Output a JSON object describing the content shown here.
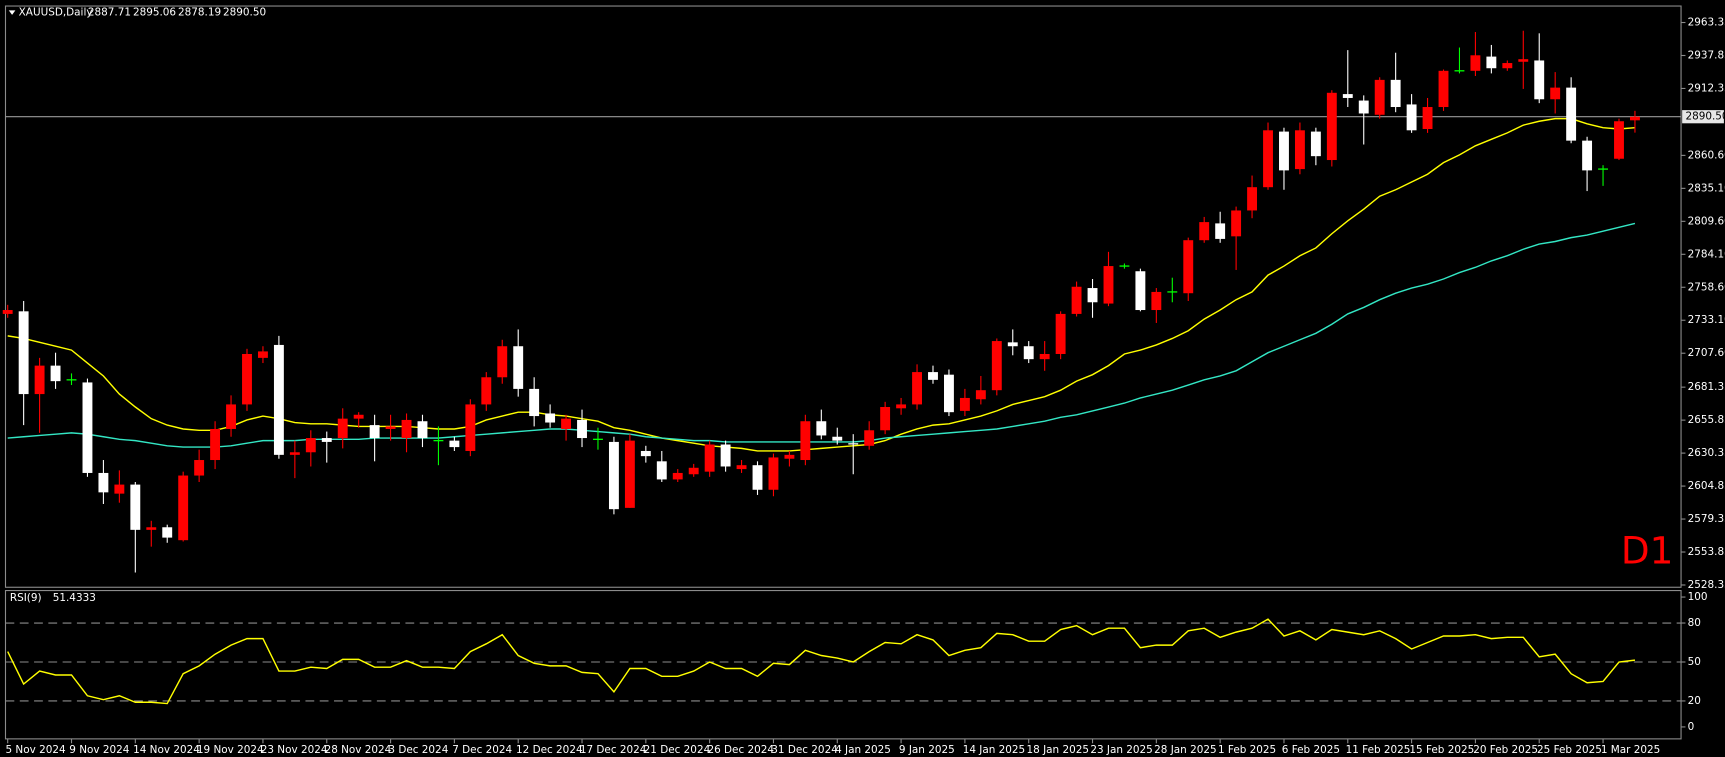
{
  "chart_data": [
    {
      "type": "candlestick",
      "title": "XAUUSD,Daily",
      "last_bar_labels": [
        "2887.71",
        "2895.06",
        "2878.19",
        "2890.50"
      ],
      "badge": "D1",
      "categories": [
        "5 Nov 2024",
        null,
        null,
        null,
        "9 Nov 2024",
        null,
        null,
        null,
        "14 Nov 2024",
        null,
        null,
        null,
        "19 Nov 2024",
        null,
        null,
        null,
        "23 Nov 2024",
        null,
        null,
        null,
        "28 Nov 2024",
        null,
        null,
        null,
        "3 Dec 2024",
        null,
        null,
        null,
        "7 Dec 2024",
        null,
        null,
        null,
        "12 Dec 2024",
        null,
        null,
        null,
        "17 Dec 2024",
        null,
        null,
        null,
        "21 Dec 2024",
        null,
        null,
        null,
        "26 Dec 2024",
        null,
        null,
        null,
        "31 Dec 2024",
        null,
        null,
        null,
        "4 Jan 2025",
        null,
        null,
        null,
        "9 Jan 2025",
        null,
        null,
        null,
        "14 Jan 2025",
        null,
        null,
        null,
        "18 Jan 2025",
        null,
        null,
        null,
        "23 Jan 2025",
        null,
        null,
        null,
        "28 Jan 2025",
        null,
        null,
        null,
        "1 Feb 2025",
        null,
        null,
        null,
        "6 Feb 2025",
        null,
        null,
        null,
        "11 Feb 2025",
        null,
        null,
        null,
        "15 Feb 2025",
        null,
        null,
        null,
        "20 Feb 2025",
        null,
        null,
        null,
        "25 Feb 2025",
        null,
        null,
        null,
        "1 Mar 2025",
        null,
        null
      ],
      "open": [
        2738,
        2740,
        2676,
        2698,
        2687,
        2685,
        2615,
        2599,
        2606,
        2571,
        2573,
        2563,
        2613,
        2625,
        2649,
        2668,
        2704,
        2714,
        2629,
        2631,
        2642,
        2642,
        2657,
        2652,
        2649,
        2642,
        2655,
        2640,
        2640,
        2632,
        2668,
        2689,
        2713,
        2680,
        2661,
        2649,
        2656,
        2641,
        2639,
        2588,
        2632,
        2624,
        2610,
        2614,
        2616,
        2637,
        2618,
        2621,
        2602,
        2626,
        2625,
        2655,
        2643,
        2638,
        2636,
        2648,
        2665,
        2668,
        2693,
        2691,
        2663,
        2672,
        2679,
        2716,
        2713,
        2703,
        2707,
        2738,
        2758,
        2746,
        2775,
        2771,
        2741,
        2755,
        2754,
        2795,
        2808,
        2798,
        2818,
        2836,
        2879,
        2850,
        2879,
        2857,
        2908,
        2903,
        2892,
        2919,
        2900,
        2881,
        2898,
        2926,
        2926,
        2937,
        2928,
        2933,
        2934,
        2904,
        2913,
        2872,
        2850,
        2858,
        2887.71
      ],
      "high": [
        2745,
        2748,
        2704,
        2708,
        2692,
        2688,
        2625,
        2617,
        2608,
        2578,
        2575,
        2616,
        2633,
        2655,
        2675,
        2711,
        2713,
        2721,
        2640,
        2648,
        2647,
        2665,
        2662,
        2660,
        2660,
        2661,
        2660,
        2651,
        2643,
        2672,
        2693,
        2718,
        2726,
        2689,
        2668,
        2660,
        2664,
        2650,
        2643,
        2645,
        2636,
        2632,
        2618,
        2622,
        2640,
        2640,
        2625,
        2624,
        2630,
        2632,
        2660,
        2664,
        2650,
        2645,
        2655,
        2670,
        2673,
        2699,
        2698,
        2695,
        2680,
        2690,
        2719,
        2726,
        2717,
        2717,
        2740,
        2763,
        2765,
        2786,
        2777,
        2773,
        2758,
        2766,
        2797,
        2813,
        2817,
        2821,
        2845,
        2886,
        2882,
        2886,
        2882,
        2911,
        2942,
        2907,
        2921,
        2940,
        2908,
        2905,
        2927,
        2944,
        2956,
        2946,
        2934,
        2957,
        2955,
        2925,
        2921,
        2875,
        2853,
        2889,
        2895.06
      ],
      "low": [
        2735,
        2652,
        2646,
        2680,
        2683,
        2612,
        2591,
        2592,
        2538,
        2558,
        2561,
        2562,
        2608,
        2618,
        2643,
        2663,
        2700,
        2626,
        2611,
        2620,
        2623,
        2634,
        2650,
        2624,
        2640,
        2631,
        2635,
        2621,
        2632,
        2628,
        2663,
        2684,
        2674,
        2651,
        2650,
        2640,
        2635,
        2633,
        2583,
        2588,
        2623,
        2608,
        2608,
        2612,
        2612,
        2616,
        2615,
        2598,
        2597,
        2620,
        2621,
        2641,
        2637,
        2614,
        2633,
        2645,
        2660,
        2664,
        2684,
        2659,
        2659,
        2668,
        2675,
        2706,
        2700,
        2694,
        2703,
        2736,
        2735,
        2744,
        2773,
        2740,
        2731,
        2747,
        2748,
        2793,
        2793,
        2772,
        2812,
        2834,
        2834,
        2846,
        2853,
        2852,
        2898,
        2869,
        2889,
        2894,
        2878,
        2878,
        2895,
        2924,
        2922,
        2924,
        2926,
        2912,
        2901,
        2893,
        2870,
        2833,
        2837,
        2857,
        2878.19
      ],
      "close": [
        2741,
        2676,
        2698,
        2686,
        2687,
        2615,
        2600,
        2606,
        2571,
        2573,
        2565,
        2613,
        2625,
        2649,
        2668,
        2707,
        2709,
        2629,
        2631,
        2642,
        2639,
        2657,
        2660,
        2642,
        2651,
        2656,
        2642,
        2640,
        2635,
        2668,
        2689,
        2713,
        2680,
        2659,
        2654,
        2657,
        2642,
        2641,
        2587,
        2640,
        2628,
        2610,
        2615,
        2619,
        2637,
        2620,
        2621,
        2602,
        2627,
        2629,
        2655,
        2644,
        2640,
        2637,
        2648,
        2666,
        2668,
        2693,
        2687,
        2662,
        2673,
        2679,
        2717,
        2713,
        2703,
        2707,
        2738,
        2759,
        2747,
        2775,
        2775,
        2741,
        2755,
        2755,
        2795,
        2809,
        2796,
        2818,
        2836,
        2880,
        2849,
        2880,
        2860,
        2909,
        2905,
        2893,
        2919,
        2898,
        2880,
        2898,
        2926,
        2926,
        2938,
        2928,
        2932,
        2935,
        2904,
        2913,
        2872,
        2849,
        2850,
        2887,
        2890.5
      ],
      "up_color": "#ff0000",
      "down_color": "#ffffff",
      "doji_color": "#00ff00",
      "series": [
        {
          "color": "#ffff00",
          "values": [
            2721,
            2719,
            2716,
            2713,
            2710,
            2700,
            2690,
            2676,
            2666,
            2657,
            2652,
            2649,
            2648,
            2648,
            2651,
            2656,
            2659,
            2657,
            2654,
            2653,
            2653,
            2652,
            2651,
            2651,
            2651,
            2651,
            2650,
            2649,
            2649,
            2651,
            2656,
            2659,
            2662,
            2662,
            2660,
            2659,
            2657,
            2655,
            2650,
            2648,
            2645,
            2642,
            2640,
            2638,
            2636,
            2635,
            2634,
            2632,
            2632,
            2632,
            2633,
            2634,
            2635,
            2636,
            2637,
            2640,
            2645,
            2649,
            2652,
            2653,
            2656,
            2659,
            2663,
            2668,
            2671,
            2674,
            2679,
            2686,
            2691,
            2698,
            2707,
            2710,
            2714,
            2719,
            2725,
            2734,
            2741,
            2749,
            2755,
            2768,
            2775,
            2783,
            2789,
            2800,
            2810,
            2819,
            2829,
            2834,
            2840,
            2846,
            2855,
            2861,
            2868,
            2873,
            2878,
            2884,
            2887,
            2889,
            2889,
            2885,
            2882,
            2881,
            2882
          ]
        },
        {
          "color": "#33e6c4",
          "values": [
            2642,
            2643,
            2644,
            2645,
            2646,
            2645,
            2643,
            2641,
            2640,
            2638,
            2636,
            2635,
            2635,
            2635,
            2636,
            2638,
            2640,
            2640,
            2640,
            2641,
            2641,
            2641,
            2641,
            2642,
            2642,
            2642,
            2642,
            2642,
            2643,
            2644,
            2645,
            2646,
            2647,
            2648,
            2649,
            2649,
            2648,
            2647,
            2646,
            2645,
            2643,
            2642,
            2641,
            2640,
            2640,
            2639,
            2639,
            2639,
            2639,
            2639,
            2639,
            2639,
            2639,
            2639,
            2640,
            2642,
            2643,
            2644,
            2645,
            2646,
            2647,
            2648,
            2649,
            2651,
            2653,
            2655,
            2658,
            2660,
            2663,
            2666,
            2669,
            2673,
            2676,
            2679,
            2683,
            2687,
            2690,
            2694,
            2701,
            2708,
            2713,
            2718,
            2723,
            2730,
            2738,
            2743,
            2749,
            2754,
            2758,
            2761,
            2765,
            2770,
            2774,
            2779,
            2783,
            2788,
            2792,
            2794,
            2797,
            2799,
            2802,
            2805,
            2808
          ]
        }
      ],
      "bid": {
        "value": 2890.5,
        "label": "2890.50"
      },
      "ylim": [
        2526.6,
        2976.1
      ],
      "yticks": [
        2963.35,
        2937.85,
        2912.35,
        {
          "value": 2860.6,
          "label": "2860.60"
        },
        {
          "value": 2835.1,
          "label": "2835.10"
        },
        {
          "value": 2809.6,
          "label": "2809.60"
        },
        {
          "value": 2784.1,
          "label": "2784.10"
        },
        {
          "value": 2758.6,
          "label": "2758.60"
        },
        {
          "value": 2733.1,
          "label": "2733.10"
        },
        {
          "value": 2707.6,
          "label": "2707.60"
        },
        2681.35,
        2655.85,
        2630.35,
        2604.85,
        2579.35,
        2553.85,
        2528.35
      ]
    },
    {
      "type": "line",
      "title": "RSI(9)",
      "color": "#ffff00",
      "values": [
        58,
        33,
        43,
        40,
        40,
        24,
        21,
        24,
        19,
        19,
        18,
        41,
        47,
        56,
        63,
        68,
        68,
        43,
        43,
        46,
        45,
        52,
        52,
        46,
        46,
        51,
        46,
        46,
        45,
        58,
        64,
        71,
        55,
        49,
        47,
        47,
        42,
        41,
        27,
        45,
        45,
        39,
        39,
        43,
        50,
        45,
        45,
        39,
        49,
        48,
        59,
        55,
        53,
        50,
        58,
        65,
        64,
        71,
        67,
        55,
        59,
        61,
        72,
        71,
        66,
        66,
        75,
        78,
        71,
        76,
        76,
        61,
        63,
        63,
        74,
        76,
        69,
        73,
        76,
        83,
        70,
        74,
        67,
        75,
        73,
        71,
        74,
        68,
        60,
        65,
        70,
        70,
        71,
        68,
        69,
        69,
        54,
        56,
        41,
        34,
        35,
        50,
        51.4333
      ],
      "ylim": [
        -9.2,
        105
      ],
      "yticks": [
        100,
        80,
        50,
        20,
        0
      ],
      "levels": [
        80,
        50,
        20
      ]
    }
  ]
}
